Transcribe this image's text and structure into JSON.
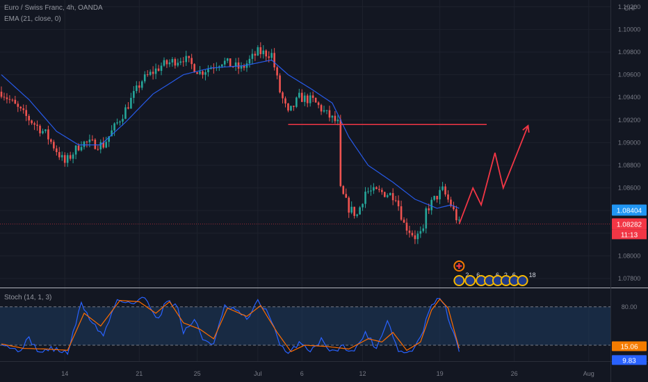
{
  "header": {
    "symbol": "Euro / Swiss Franc, 4h, OANDA",
    "indicator": "EMA (21, close, 0)"
  },
  "stoch_panel": {
    "label": "Stoch (14, 1, 3)"
  },
  "colors": {
    "background": "#131722",
    "grid": "#1e222d",
    "axis_text": "#787b86",
    "candle_up": "#26a69a",
    "candle_down": "#ef5350",
    "ema": "#2962ff",
    "projection": "#f23645",
    "stoch_k": "#2962ff",
    "stoch_d": "#ff6d00",
    "stoch_band": "#1e3a5f",
    "price_tag_blue": "#2196f3",
    "price_tag_red": "#f23645",
    "stoch_tag_orange": "#f57c00",
    "stoch_tag_blue": "#2962ff"
  },
  "chart_data": [
    {
      "type": "candlestick",
      "y_unit": "CHF",
      "ylim": [
        1.0772,
        1.1026
      ],
      "y_ticks": [
        "1.10200",
        "1.10000",
        "1.09800",
        "1.09600",
        "1.09400",
        "1.09200",
        "1.09000",
        "1.08800",
        "1.08600",
        "1.08400",
        "1.08200",
        "1.08000",
        "1.07800"
      ],
      "x_ticks": [
        "14",
        "21",
        "25",
        "Jul",
        "6",
        "12",
        "19",
        "26",
        "Aug"
      ],
      "grid": true,
      "price_tags": [
        {
          "label": "1.08404",
          "value": 1.08404,
          "color": "blue"
        },
        {
          "label": "1.08282",
          "value": 1.08282,
          "color": "red"
        }
      ],
      "countdown": "11:13",
      "current_price_line": 1.08282,
      "anchors": [
        {
          "i": 0,
          "v": 1.0945
        },
        {
          "i": 8,
          "v": 1.0925
        },
        {
          "i": 16,
          "v": 1.0908
        },
        {
          "i": 23,
          "v": 1.0882
        },
        {
          "i": 29,
          "v": 1.09
        },
        {
          "i": 37,
          "v": 1.0898
        },
        {
          "i": 44,
          "v": 1.0925
        },
        {
          "i": 51,
          "v": 1.0955
        },
        {
          "i": 58,
          "v": 1.0968
        },
        {
          "i": 66,
          "v": 1.0975
        },
        {
          "i": 72,
          "v": 1.0962
        },
        {
          "i": 80,
          "v": 1.0972
        },
        {
          "i": 87,
          "v": 1.0965
        },
        {
          "i": 93,
          "v": 1.098
        },
        {
          "i": 98,
          "v": 1.0978
        },
        {
          "i": 101,
          "v": 1.0945
        },
        {
          "i": 104,
          "v": 1.0925
        },
        {
          "i": 108,
          "v": 1.094
        },
        {
          "i": 113,
          "v": 1.0937
        },
        {
          "i": 118,
          "v": 1.0925
        },
        {
          "i": 122,
          "v": 1.0917
        },
        {
          "i": 123,
          "v": 1.0858
        },
        {
          "i": 126,
          "v": 1.0842
        },
        {
          "i": 129,
          "v": 1.0836
        },
        {
          "i": 132,
          "v": 1.0857
        },
        {
          "i": 138,
          "v": 1.0856
        },
        {
          "i": 143,
          "v": 1.0853
        },
        {
          "i": 146,
          "v": 1.0828
        },
        {
          "i": 150,
          "v": 1.0817
        },
        {
          "i": 153,
          "v": 1.082
        },
        {
          "i": 154,
          "v": 1.084
        },
        {
          "i": 157,
          "v": 1.085
        },
        {
          "i": 160,
          "v": 1.0858
        },
        {
          "i": 163,
          "v": 1.0845
        },
        {
          "i": 166,
          "v": 1.0828
        }
      ],
      "ema_points": [
        {
          "i": 0,
          "v": 1.096
        },
        {
          "i": 10,
          "v": 1.0938
        },
        {
          "i": 20,
          "v": 1.091
        },
        {
          "i": 28,
          "v": 1.0898
        },
        {
          "i": 36,
          "v": 1.0898
        },
        {
          "i": 45,
          "v": 1.0918
        },
        {
          "i": 55,
          "v": 1.0943
        },
        {
          "i": 66,
          "v": 1.096
        },
        {
          "i": 76,
          "v": 1.0966
        },
        {
          "i": 88,
          "v": 1.0968
        },
        {
          "i": 98,
          "v": 1.0973
        },
        {
          "i": 104,
          "v": 1.096
        },
        {
          "i": 112,
          "v": 1.0948
        },
        {
          "i": 120,
          "v": 1.0935
        },
        {
          "i": 126,
          "v": 1.0905
        },
        {
          "i": 133,
          "v": 1.088
        },
        {
          "i": 142,
          "v": 1.0865
        },
        {
          "i": 150,
          "v": 1.085
        },
        {
          "i": 158,
          "v": 1.0842
        },
        {
          "i": 163,
          "v": 1.0845
        },
        {
          "i": 166,
          "v": 1.0842
        }
      ],
      "horizontal_level": {
        "value": 1.0916,
        "from_i": 104,
        "to_i": 176
      },
      "projection_path": [
        {
          "i": 166,
          "v": 1.0828
        },
        {
          "i": 171,
          "v": 1.086
        },
        {
          "i": 174,
          "v": 1.0845
        },
        {
          "i": 179,
          "v": 1.0891
        },
        {
          "i": 182,
          "v": 1.086
        },
        {
          "i": 191,
          "v": 1.0915
        }
      ],
      "event_markers": [
        {
          "i": 166,
          "label": "2"
        },
        {
          "i": 170,
          "label": "6"
        },
        {
          "i": 174,
          "label": ""
        },
        {
          "i": 177,
          "label": "6"
        },
        {
          "i": 180,
          "label": "2"
        },
        {
          "i": 183,
          "label": "6"
        },
        {
          "i": 186,
          "label": ""
        },
        {
          "i": 189,
          "label": "18"
        }
      ]
    },
    {
      "type": "line",
      "name": "Stoch",
      "ylim": [
        -5,
        108
      ],
      "y_ticks": [
        "80.00",
        "20.00"
      ],
      "band": [
        20,
        80
      ],
      "value_tags": [
        {
          "label": "15.06",
          "value": 15.06,
          "color": "orange"
        },
        {
          "label": "9.83",
          "value": 9.83,
          "color": "blue"
        }
      ],
      "k_anchors": [
        {
          "i": 0,
          "v": 25
        },
        {
          "i": 6,
          "v": 10
        },
        {
          "i": 10,
          "v": 30
        },
        {
          "i": 14,
          "v": 8
        },
        {
          "i": 18,
          "v": 15
        },
        {
          "i": 24,
          "v": 8
        },
        {
          "i": 29,
          "v": 85
        },
        {
          "i": 33,
          "v": 55
        },
        {
          "i": 37,
          "v": 35
        },
        {
          "i": 42,
          "v": 92
        },
        {
          "i": 48,
          "v": 85
        },
        {
          "i": 52,
          "v": 95
        },
        {
          "i": 57,
          "v": 60
        },
        {
          "i": 60,
          "v": 92
        },
        {
          "i": 64,
          "v": 78
        },
        {
          "i": 66,
          "v": 40
        },
        {
          "i": 70,
          "v": 60
        },
        {
          "i": 73,
          "v": 30
        },
        {
          "i": 77,
          "v": 22
        },
        {
          "i": 81,
          "v": 80
        },
        {
          "i": 85,
          "v": 75
        },
        {
          "i": 89,
          "v": 60
        },
        {
          "i": 93,
          "v": 88
        },
        {
          "i": 97,
          "v": 70
        },
        {
          "i": 101,
          "v": 20
        },
        {
          "i": 104,
          "v": 5
        },
        {
          "i": 108,
          "v": 25
        },
        {
          "i": 112,
          "v": 12
        },
        {
          "i": 116,
          "v": 28
        },
        {
          "i": 120,
          "v": 10
        },
        {
          "i": 124,
          "v": 18
        },
        {
          "i": 128,
          "v": 10
        },
        {
          "i": 132,
          "v": 40
        },
        {
          "i": 136,
          "v": 15
        },
        {
          "i": 140,
          "v": 60
        },
        {
          "i": 144,
          "v": 10
        },
        {
          "i": 148,
          "v": 8
        },
        {
          "i": 152,
          "v": 30
        },
        {
          "i": 155,
          "v": 72
        },
        {
          "i": 158,
          "v": 95
        },
        {
          "i": 161,
          "v": 80
        },
        {
          "i": 163,
          "v": 50
        },
        {
          "i": 166,
          "v": 9.83
        }
      ],
      "d_anchors": [
        {
          "i": 0,
          "v": 22
        },
        {
          "i": 8,
          "v": 15
        },
        {
          "i": 16,
          "v": 14
        },
        {
          "i": 24,
          "v": 12
        },
        {
          "i": 30,
          "v": 70
        },
        {
          "i": 36,
          "v": 50
        },
        {
          "i": 43,
          "v": 90
        },
        {
          "i": 50,
          "v": 88
        },
        {
          "i": 56,
          "v": 70
        },
        {
          "i": 61,
          "v": 88
        },
        {
          "i": 66,
          "v": 55
        },
        {
          "i": 72,
          "v": 45
        },
        {
          "i": 77,
          "v": 30
        },
        {
          "i": 82,
          "v": 78
        },
        {
          "i": 89,
          "v": 65
        },
        {
          "i": 94,
          "v": 82
        },
        {
          "i": 100,
          "v": 40
        },
        {
          "i": 105,
          "v": 10
        },
        {
          "i": 110,
          "v": 20
        },
        {
          "i": 118,
          "v": 18
        },
        {
          "i": 126,
          "v": 14
        },
        {
          "i": 133,
          "v": 30
        },
        {
          "i": 138,
          "v": 25
        },
        {
          "i": 142,
          "v": 40
        },
        {
          "i": 147,
          "v": 12
        },
        {
          "i": 152,
          "v": 25
        },
        {
          "i": 156,
          "v": 75
        },
        {
          "i": 159,
          "v": 92
        },
        {
          "i": 162,
          "v": 78
        },
        {
          "i": 166,
          "v": 15.06
        }
      ]
    }
  ]
}
